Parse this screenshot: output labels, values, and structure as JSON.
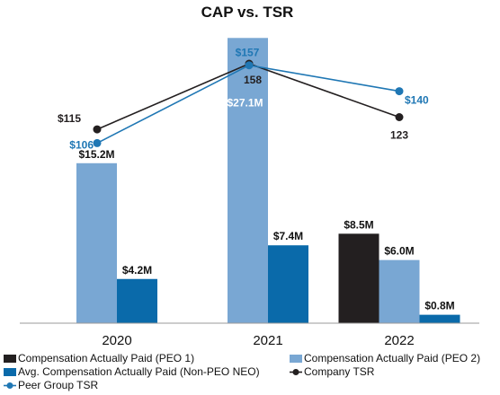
{
  "chart_data": {
    "type": "bar",
    "title": "CAP vs. TSR",
    "categories": [
      "2020",
      "2021",
      "2022"
    ],
    "bar_unit": "$M",
    "ylim": [
      0,
      29
    ],
    "series": [
      {
        "name": "Compensation Actually Paid (PEO 1)",
        "kind": "bar",
        "color": "#231f20",
        "values": [
          null,
          null,
          8.5
        ],
        "labels": [
          "",
          "",
          "$8.5M"
        ]
      },
      {
        "name": "Compensation Actually Paid (PEO 2)",
        "kind": "bar",
        "color": "#79a7d3",
        "values": [
          15.2,
          27.1,
          6.0
        ],
        "labels": [
          "$15.2M",
          "$27.1M",
          "$6.0M"
        ]
      },
      {
        "name": "Avg. Compensation Actually Paid (Non-PEO NEO)",
        "kind": "bar",
        "color": "#0a6aaa",
        "values": [
          4.2,
          7.4,
          0.8
        ],
        "labels": [
          "$4.2M",
          "$7.4M",
          "$0.8M"
        ]
      },
      {
        "name": "Company TSR",
        "kind": "line",
        "color": "#231f20",
        "values": [
          115,
          158,
          123
        ],
        "labels": [
          "$115",
          "158",
          "123"
        ]
      },
      {
        "name": "Peer Group TSR",
        "kind": "line",
        "color": "#1f77b4",
        "values": [
          106,
          157,
          140
        ],
        "labels": [
          "$106",
          "$157",
          "$140"
        ]
      }
    ],
    "legend_position": "bottom",
    "grid": false
  }
}
